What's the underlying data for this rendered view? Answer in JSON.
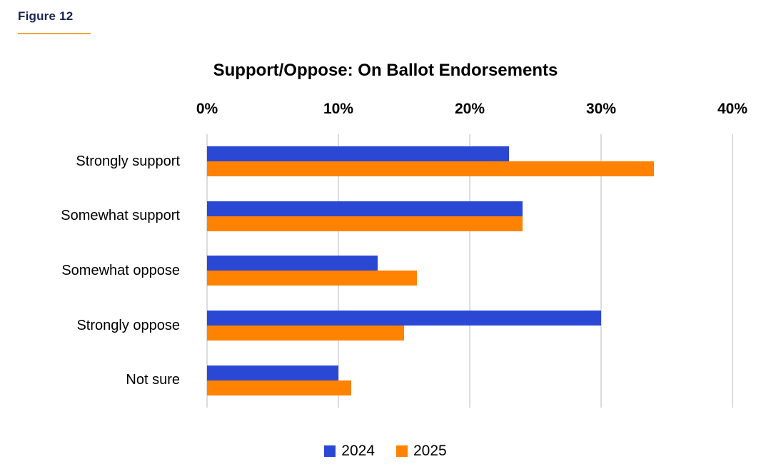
{
  "figure": {
    "label": "Figure 12"
  },
  "chart_data": {
    "type": "bar",
    "orientation": "horizontal",
    "title": "Support/Oppose: On Ballot Endorsements",
    "categories": [
      "Strongly support",
      "Somewhat support",
      "Somewhat oppose",
      "Strongly oppose",
      "Not sure"
    ],
    "series": [
      {
        "name": "2024",
        "color": "#2B48D5",
        "values": [
          23,
          24,
          13,
          30,
          10
        ]
      },
      {
        "name": "2025",
        "color": "#FF8200",
        "values": [
          34,
          24,
          16,
          15,
          11
        ]
      }
    ],
    "xlim": [
      0,
      40
    ],
    "x_ticks": [
      "0%",
      "10%",
      "20%",
      "30%",
      "40%"
    ],
    "grid": "vertical-gridlines-on",
    "legend_position": "bottom",
    "axis_position": "top"
  },
  "colors": {
    "figure_label": "#162456",
    "figure_underline": "#F2A33C",
    "gridline": "#DCDCDC",
    "background": "#FFFFFF",
    "text": "#000000"
  }
}
